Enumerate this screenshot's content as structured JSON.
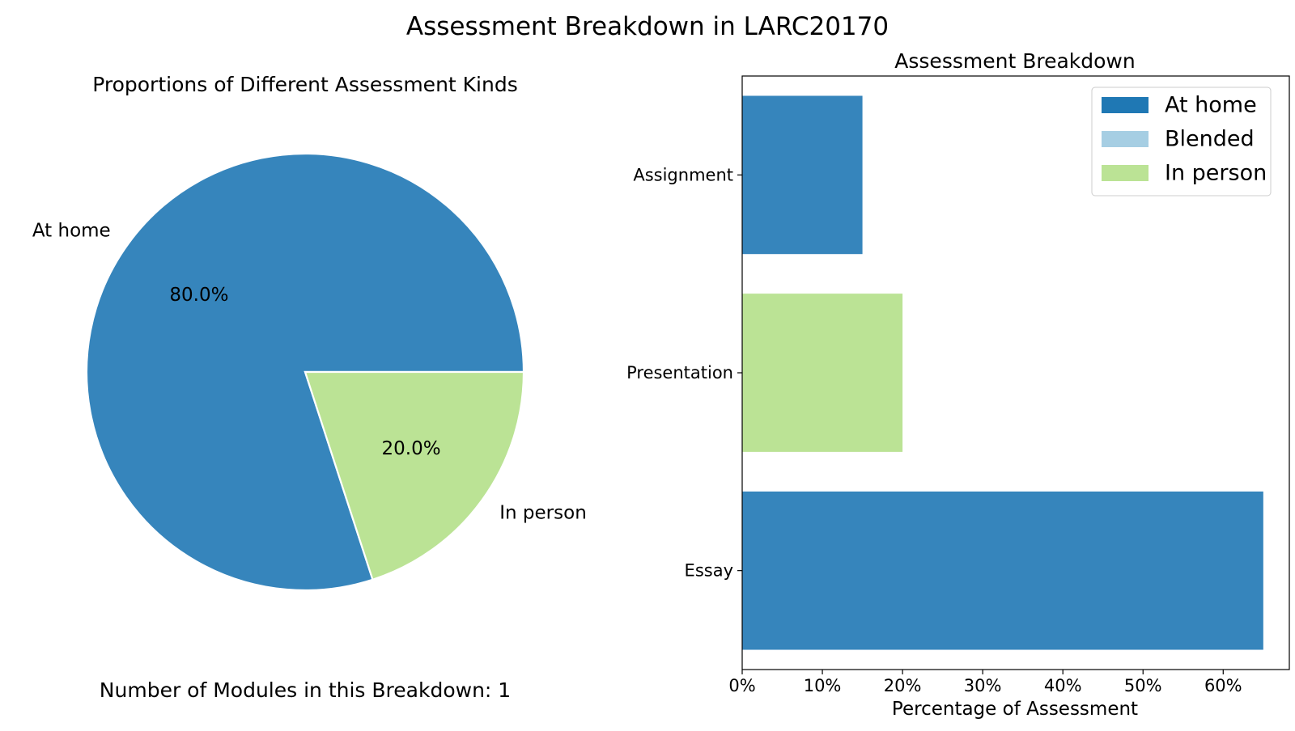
{
  "figure": {
    "suptitle": "Assessment Breakdown in LARC20170",
    "footnote": "Number of Modules in this Breakdown: 1"
  },
  "colors": {
    "at_home": "#3685bc",
    "blended": "#a6cee3",
    "in_person": "#bbe395",
    "legend_at_home": "#1f78b4",
    "wedge_edge": "#ffffff"
  },
  "chart_data": [
    {
      "type": "pie",
      "title": "Proportions of Different Assessment Kinds",
      "slices": [
        {
          "label": "At home",
          "value": 80.0,
          "pct_label": "80.0%",
          "color": "#3685bc"
        },
        {
          "label": "In person",
          "value": 20.0,
          "pct_label": "20.0%",
          "color": "#bbe395"
        }
      ],
      "start_angle_deg": 0,
      "direction": "counterclockwise"
    },
    {
      "type": "bar",
      "orientation": "horizontal",
      "title": "Assessment Breakdown",
      "xlabel": "Percentage of Assessment",
      "ylabel": "",
      "categories": [
        "Assignment",
        "Presentation",
        "Essay"
      ],
      "bars": [
        {
          "category": "Assignment",
          "value": 15,
          "kind": "At home",
          "color": "#3685bc"
        },
        {
          "category": "Presentation",
          "value": 20,
          "kind": "In person",
          "color": "#bbe395"
        },
        {
          "category": "Essay",
          "value": 65,
          "kind": "At home",
          "color": "#3685bc"
        }
      ],
      "xlim": [
        0,
        68.25
      ],
      "xticks": [
        0,
        10,
        20,
        30,
        40,
        50,
        60
      ],
      "xtick_labels": [
        "0%",
        "10%",
        "20%",
        "30%",
        "40%",
        "50%",
        "60%"
      ],
      "grid": false,
      "legend": {
        "placement": "top-right",
        "entries": [
          {
            "label": "At home",
            "color": "#1f78b4"
          },
          {
            "label": "Blended",
            "color": "#a6cee3"
          },
          {
            "label": "In person",
            "color": "#bbe395"
          }
        ]
      }
    }
  ]
}
